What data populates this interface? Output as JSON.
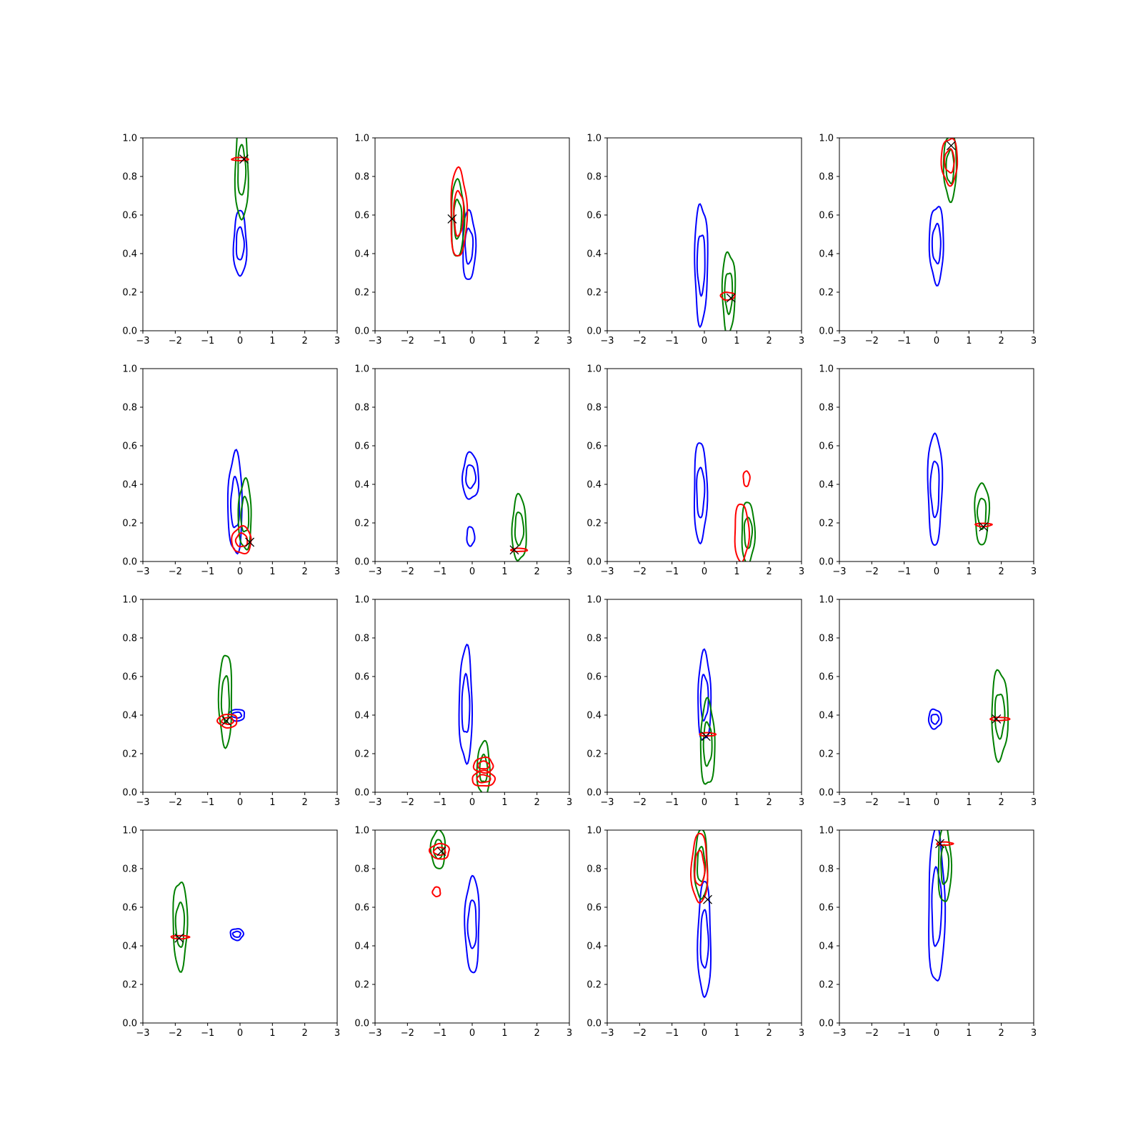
{
  "chart_data": {
    "type": "contour",
    "layout": {
      "rows": 4,
      "cols": 4
    },
    "shared_axes": {
      "xlim": [
        -3,
        3
      ],
      "ylim": [
        0,
        1
      ],
      "xticks": [
        -3,
        -2,
        -1,
        0,
        1,
        2,
        3
      ],
      "yticks": [
        0.0,
        0.2,
        0.4,
        0.6,
        0.8,
        1.0
      ],
      "xtick_labels": [
        "−3",
        "−2",
        "−1",
        "0",
        "1",
        "2",
        "3"
      ],
      "ytick_labels": [
        "0.0",
        "0.2",
        "0.4",
        "0.6",
        "0.8",
        "1.0"
      ]
    },
    "series_colors": {
      "blue": "#0000ff",
      "green": "#008000",
      "red": "#ff0000",
      "marker": "#000000"
    },
    "panels": [
      {
        "blue": [
          {
            "x": 0.0,
            "y": 0.45,
            "wx": 0.2,
            "hy": 0.17,
            "levels": 2
          }
        ],
        "green": [
          {
            "x": 0.05,
            "y": 0.83,
            "wx": 0.2,
            "hy": 0.26,
            "levels": 2
          }
        ],
        "red": [
          {
            "x": 0.0,
            "y": 0.89,
            "wx": 0.25,
            "hy": 0.008,
            "levels": 1
          }
        ],
        "marker": {
          "x": 0.12,
          "y": 0.89
        }
      },
      {
        "blue": [
          {
            "x": -0.1,
            "y": 0.44,
            "wx": 0.2,
            "hy": 0.18,
            "levels": 2
          }
        ],
        "green": [
          {
            "x": -0.45,
            "y": 0.58,
            "wx": 0.2,
            "hy": 0.2,
            "levels": 2
          }
        ],
        "red": [
          {
            "x": -0.42,
            "y": 0.61,
            "wx": 0.25,
            "hy": 0.23,
            "levels": 2
          }
        ],
        "marker": {
          "x": -0.62,
          "y": 0.58
        }
      },
      {
        "blue": [
          {
            "x": -0.1,
            "y": 0.35,
            "wx": 0.2,
            "hy": 0.31,
            "levels": 2
          }
        ],
        "green": [
          {
            "x": 0.75,
            "y": 0.2,
            "wx": 0.2,
            "hy": 0.21,
            "levels": 2
          }
        ],
        "red": [
          {
            "x": 0.72,
            "y": 0.18,
            "wx": 0.22,
            "hy": 0.02,
            "levels": 1
          }
        ],
        "marker": {
          "x": 0.82,
          "y": 0.17
        }
      },
      {
        "blue": [
          {
            "x": 0.0,
            "y": 0.45,
            "wx": 0.22,
            "hy": 0.2,
            "levels": 2
          }
        ],
        "green": [
          {
            "x": 0.42,
            "y": 0.85,
            "wx": 0.2,
            "hy": 0.17,
            "levels": 2
          }
        ],
        "red": [
          {
            "x": 0.4,
            "y": 0.88,
            "wx": 0.25,
            "hy": 0.12,
            "levels": 2
          }
        ],
        "marker": {
          "x": 0.45,
          "y": 0.96
        }
      },
      {
        "blue": [
          {
            "x": -0.15,
            "y": 0.3,
            "wx": 0.22,
            "hy": 0.26,
            "levels": 2
          }
        ],
        "green": [
          {
            "x": 0.15,
            "y": 0.24,
            "wx": 0.2,
            "hy": 0.18,
            "levels": 2
          }
        ],
        "red": [
          {
            "x": 0.05,
            "y": 0.11,
            "wx": 0.3,
            "hy": 0.07,
            "levels": 2
          }
        ],
        "marker": {
          "x": 0.3,
          "y": 0.1
        }
      },
      {
        "blue": [
          {
            "x": -0.05,
            "y": 0.44,
            "wx": 0.25,
            "hy": 0.12,
            "levels": 2
          },
          {
            "x": -0.05,
            "y": 0.13,
            "wx": 0.12,
            "hy": 0.05,
            "levels": 1
          }
        ],
        "green": [
          {
            "x": 1.45,
            "y": 0.17,
            "wx": 0.22,
            "hy": 0.17,
            "levels": 2
          }
        ],
        "red": [
          {
            "x": 1.45,
            "y": 0.06,
            "wx": 0.25,
            "hy": 0.008,
            "levels": 1
          }
        ],
        "marker": {
          "x": 1.3,
          "y": 0.06
        }
      },
      {
        "blue": [
          {
            "x": -0.12,
            "y": 0.36,
            "wx": 0.2,
            "hy": 0.26,
            "levels": 2
          }
        ],
        "green": [
          {
            "x": 1.35,
            "y": 0.15,
            "wx": 0.2,
            "hy": 0.16,
            "levels": 2
          }
        ],
        "red": [
          {
            "x": 1.15,
            "y": 0.15,
            "wx": 0.22,
            "hy": 0.15,
            "levels": 1
          },
          {
            "x": 1.3,
            "y": 0.43,
            "wx": 0.1,
            "hy": 0.04,
            "levels": 1
          }
        ],
        "marker": null
      },
      {
        "blue": [
          {
            "x": -0.05,
            "y": 0.38,
            "wx": 0.22,
            "hy": 0.29,
            "levels": 2
          }
        ],
        "green": [
          {
            "x": 1.4,
            "y": 0.25,
            "wx": 0.22,
            "hy": 0.16,
            "levels": 2
          }
        ],
        "red": [
          {
            "x": 1.45,
            "y": 0.19,
            "wx": 0.25,
            "hy": 0.008,
            "levels": 1
          }
        ],
        "marker": {
          "x": 1.45,
          "y": 0.18
        }
      },
      {
        "blue": [
          {
            "x": -0.1,
            "y": 0.4,
            "wx": 0.25,
            "hy": 0.03,
            "levels": 2
          }
        ],
        "green": [
          {
            "x": -0.45,
            "y": 0.48,
            "wx": 0.2,
            "hy": 0.24,
            "levels": 2
          }
        ],
        "red": [
          {
            "x": -0.38,
            "y": 0.37,
            "wx": 0.3,
            "hy": 0.035,
            "levels": 2
          }
        ],
        "marker": {
          "x": -0.42,
          "y": 0.37
        }
      },
      {
        "blue": [
          {
            "x": -0.2,
            "y": 0.45,
            "wx": 0.2,
            "hy": 0.3,
            "levels": 2
          }
        ],
        "green": [
          {
            "x": 0.35,
            "y": 0.12,
            "wx": 0.2,
            "hy": 0.14,
            "levels": 2
          }
        ],
        "red": [
          {
            "x": 0.35,
            "y": 0.14,
            "wx": 0.3,
            "hy": 0.04,
            "levels": 2
          },
          {
            "x": 0.35,
            "y": 0.07,
            "wx": 0.35,
            "hy": 0.04,
            "levels": 2
          }
        ],
        "marker": null
      },
      {
        "blue": [
          {
            "x": 0.0,
            "y": 0.49,
            "wx": 0.2,
            "hy": 0.23,
            "levels": 2
          }
        ],
        "green": [
          {
            "x": 0.1,
            "y": 0.25,
            "wx": 0.22,
            "hy": 0.22,
            "levels": 2
          }
        ],
        "red": [
          {
            "x": 0.1,
            "y": 0.3,
            "wx": 0.25,
            "hy": 0.008,
            "levels": 1
          }
        ],
        "marker": {
          "x": 0.05,
          "y": 0.29
        }
      },
      {
        "blue": [
          {
            "x": -0.05,
            "y": 0.38,
            "wx": 0.2,
            "hy": 0.05,
            "levels": 2
          }
        ],
        "green": [
          {
            "x": 1.95,
            "y": 0.4,
            "wx": 0.25,
            "hy": 0.23,
            "levels": 2
          }
        ],
        "red": [
          {
            "x": 1.95,
            "y": 0.38,
            "wx": 0.3,
            "hy": 0.008,
            "levels": 1
          }
        ],
        "marker": {
          "x": 1.85,
          "y": 0.38
        }
      },
      {
        "blue": [
          {
            "x": -0.1,
            "y": 0.46,
            "wx": 0.2,
            "hy": 0.03,
            "levels": 2
          }
        ],
        "green": [
          {
            "x": -1.85,
            "y": 0.51,
            "wx": 0.22,
            "hy": 0.23,
            "levels": 2
          }
        ],
        "red": [
          {
            "x": -1.85,
            "y": 0.445,
            "wx": 0.28,
            "hy": 0.008,
            "levels": 1
          }
        ],
        "marker": {
          "x": -1.88,
          "y": 0.44
        }
      },
      {
        "blue": [
          {
            "x": 0.0,
            "y": 0.51,
            "wx": 0.22,
            "hy": 0.25,
            "levels": 2
          }
        ],
        "green": [
          {
            "x": -1.05,
            "y": 0.9,
            "wx": 0.22,
            "hy": 0.1,
            "levels": 2
          }
        ],
        "red": [
          {
            "x": -1.0,
            "y": 0.89,
            "wx": 0.3,
            "hy": 0.04,
            "levels": 2
          },
          {
            "x": -1.1,
            "y": 0.68,
            "wx": 0.12,
            "hy": 0.025,
            "levels": 1
          }
        ],
        "marker": {
          "x": -0.95,
          "y": 0.89
        }
      },
      {
        "blue": [
          {
            "x": 0.0,
            "y": 0.43,
            "wx": 0.2,
            "hy": 0.3,
            "levels": 2
          }
        ],
        "green": [
          {
            "x": -0.1,
            "y": 0.82,
            "wx": 0.2,
            "hy": 0.18,
            "levels": 2
          }
        ],
        "red": [
          {
            "x": -0.15,
            "y": 0.8,
            "wx": 0.25,
            "hy": 0.18,
            "levels": 2
          }
        ],
        "marker": {
          "x": 0.1,
          "y": 0.64
        }
      },
      {
        "blue": [
          {
            "x": 0.0,
            "y": 0.6,
            "wx": 0.25,
            "hy": 0.4,
            "levels": 2
          }
        ],
        "green": [
          {
            "x": 0.25,
            "y": 0.82,
            "wx": 0.2,
            "hy": 0.2,
            "levels": 2
          }
        ],
        "red": [
          {
            "x": 0.25,
            "y": 0.93,
            "wx": 0.25,
            "hy": 0.008,
            "levels": 1
          }
        ],
        "marker": {
          "x": 0.1,
          "y": 0.93
        }
      }
    ]
  }
}
